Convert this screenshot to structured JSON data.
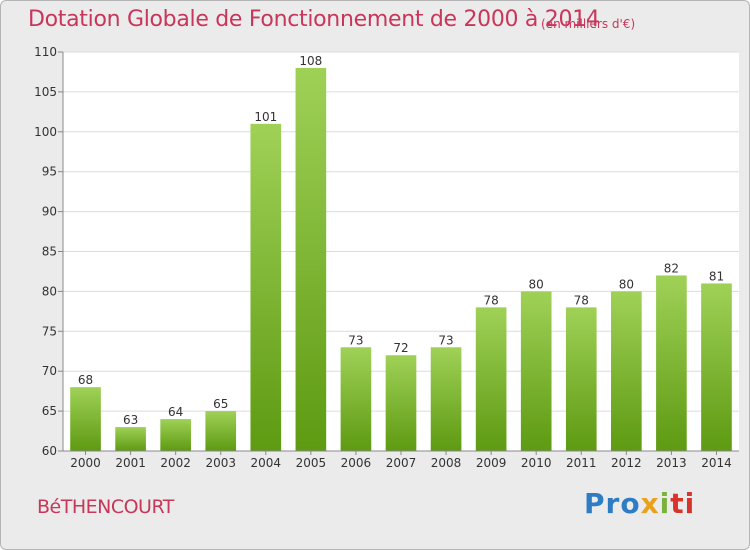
{
  "header": {
    "title": "Dotation Globale de Fonctionnement de 2000 à 2014",
    "subtitle": "(en milliers d'€)"
  },
  "footer": {
    "commune": "BéTHENCOURT",
    "logo_parts": [
      "Pro",
      "x",
      "i",
      "ti"
    ]
  },
  "colors": {
    "title": "#c8365a",
    "bar_top": "#9fd157",
    "bar_bottom": "#5e9a12",
    "background": "#ebebeb",
    "plot_background": "#ffffff"
  },
  "chart_data": {
    "type": "bar",
    "title": "Dotation Globale de Fonctionnement de 2000 à 2014",
    "subtitle": "(en milliers d'€)",
    "xlabel": "",
    "ylabel": "",
    "categories": [
      "2000",
      "2001",
      "2002",
      "2003",
      "2004",
      "2005",
      "2006",
      "2007",
      "2008",
      "2009",
      "2010",
      "2011",
      "2012",
      "2013",
      "2014"
    ],
    "values": [
      68,
      63,
      64,
      65,
      101,
      108,
      73,
      72,
      73,
      78,
      80,
      78,
      80,
      82,
      81
    ],
    "ylim": [
      60,
      110
    ],
    "yticks": [
      60,
      65,
      70,
      75,
      80,
      85,
      90,
      95,
      100,
      105,
      110
    ],
    "grid": true,
    "legend": "none"
  }
}
